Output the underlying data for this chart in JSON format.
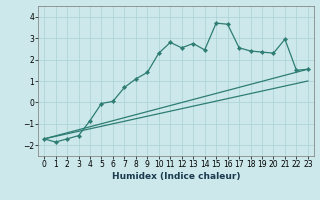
{
  "xlabel": "Humidex (Indice chaleur)",
  "ylabel": "",
  "bg_color": "#cde8ea",
  "grid_color": "#afd4d8",
  "line_color": "#2d7d74",
  "xlim": [
    -0.5,
    23.5
  ],
  "ylim": [
    -2.5,
    4.5
  ],
  "xticks": [
    0,
    1,
    2,
    3,
    4,
    5,
    6,
    7,
    8,
    9,
    10,
    11,
    12,
    13,
    14,
    15,
    16,
    17,
    18,
    19,
    20,
    21,
    22,
    23
  ],
  "yticks": [
    -2,
    -1,
    0,
    1,
    2,
    3,
    4
  ],
  "series1_x": [
    0,
    1,
    2,
    3,
    4,
    5,
    6,
    7,
    8,
    9,
    10,
    11,
    12,
    13,
    14,
    15,
    16,
    17,
    18,
    19,
    20,
    21,
    22,
    23
  ],
  "series1_y": [
    -1.7,
    -1.85,
    -1.7,
    -1.55,
    -0.85,
    -0.05,
    0.05,
    0.7,
    1.1,
    1.4,
    2.3,
    2.8,
    2.55,
    2.75,
    2.45,
    3.7,
    3.65,
    2.55,
    2.4,
    2.35,
    2.3,
    2.95,
    1.5,
    1.55
  ],
  "series2_x": [
    0,
    23
  ],
  "series2_y": [
    -1.7,
    1.55
  ],
  "series3_x": [
    0,
    23
  ],
  "series3_y": [
    -1.7,
    1.0
  ]
}
